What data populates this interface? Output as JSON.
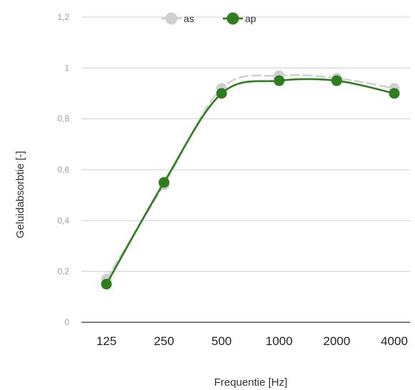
{
  "chart_data": {
    "type": "line",
    "categories": [
      "125",
      "250",
      "500",
      "1000",
      "2000",
      "4000"
    ],
    "series": [
      {
        "name": "as",
        "values": [
          0.17,
          0.54,
          0.92,
          0.97,
          0.96,
          0.92
        ],
        "color": "#d0d0d0",
        "line_style": "dashed"
      },
      {
        "name": "ap",
        "values": [
          0.15,
          0.55,
          0.9,
          0.95,
          0.95,
          0.9
        ],
        "color": "#2e7d1f",
        "line_style": "solid"
      }
    ],
    "title": "",
    "xlabel": "Frequentie [Hz]",
    "ylabel": "Geluidabsorbtie [-]",
    "ylim": [
      0,
      1.2
    ],
    "yticks": [
      0,
      0.2,
      0.4,
      0.6,
      0.8,
      1,
      1.2
    ],
    "ytick_labels": [
      "0",
      "0,2",
      "0,4",
      "0,6",
      "0,8",
      "1",
      "1,2"
    ],
    "grid": "horizontal",
    "legend": "top-center"
  }
}
